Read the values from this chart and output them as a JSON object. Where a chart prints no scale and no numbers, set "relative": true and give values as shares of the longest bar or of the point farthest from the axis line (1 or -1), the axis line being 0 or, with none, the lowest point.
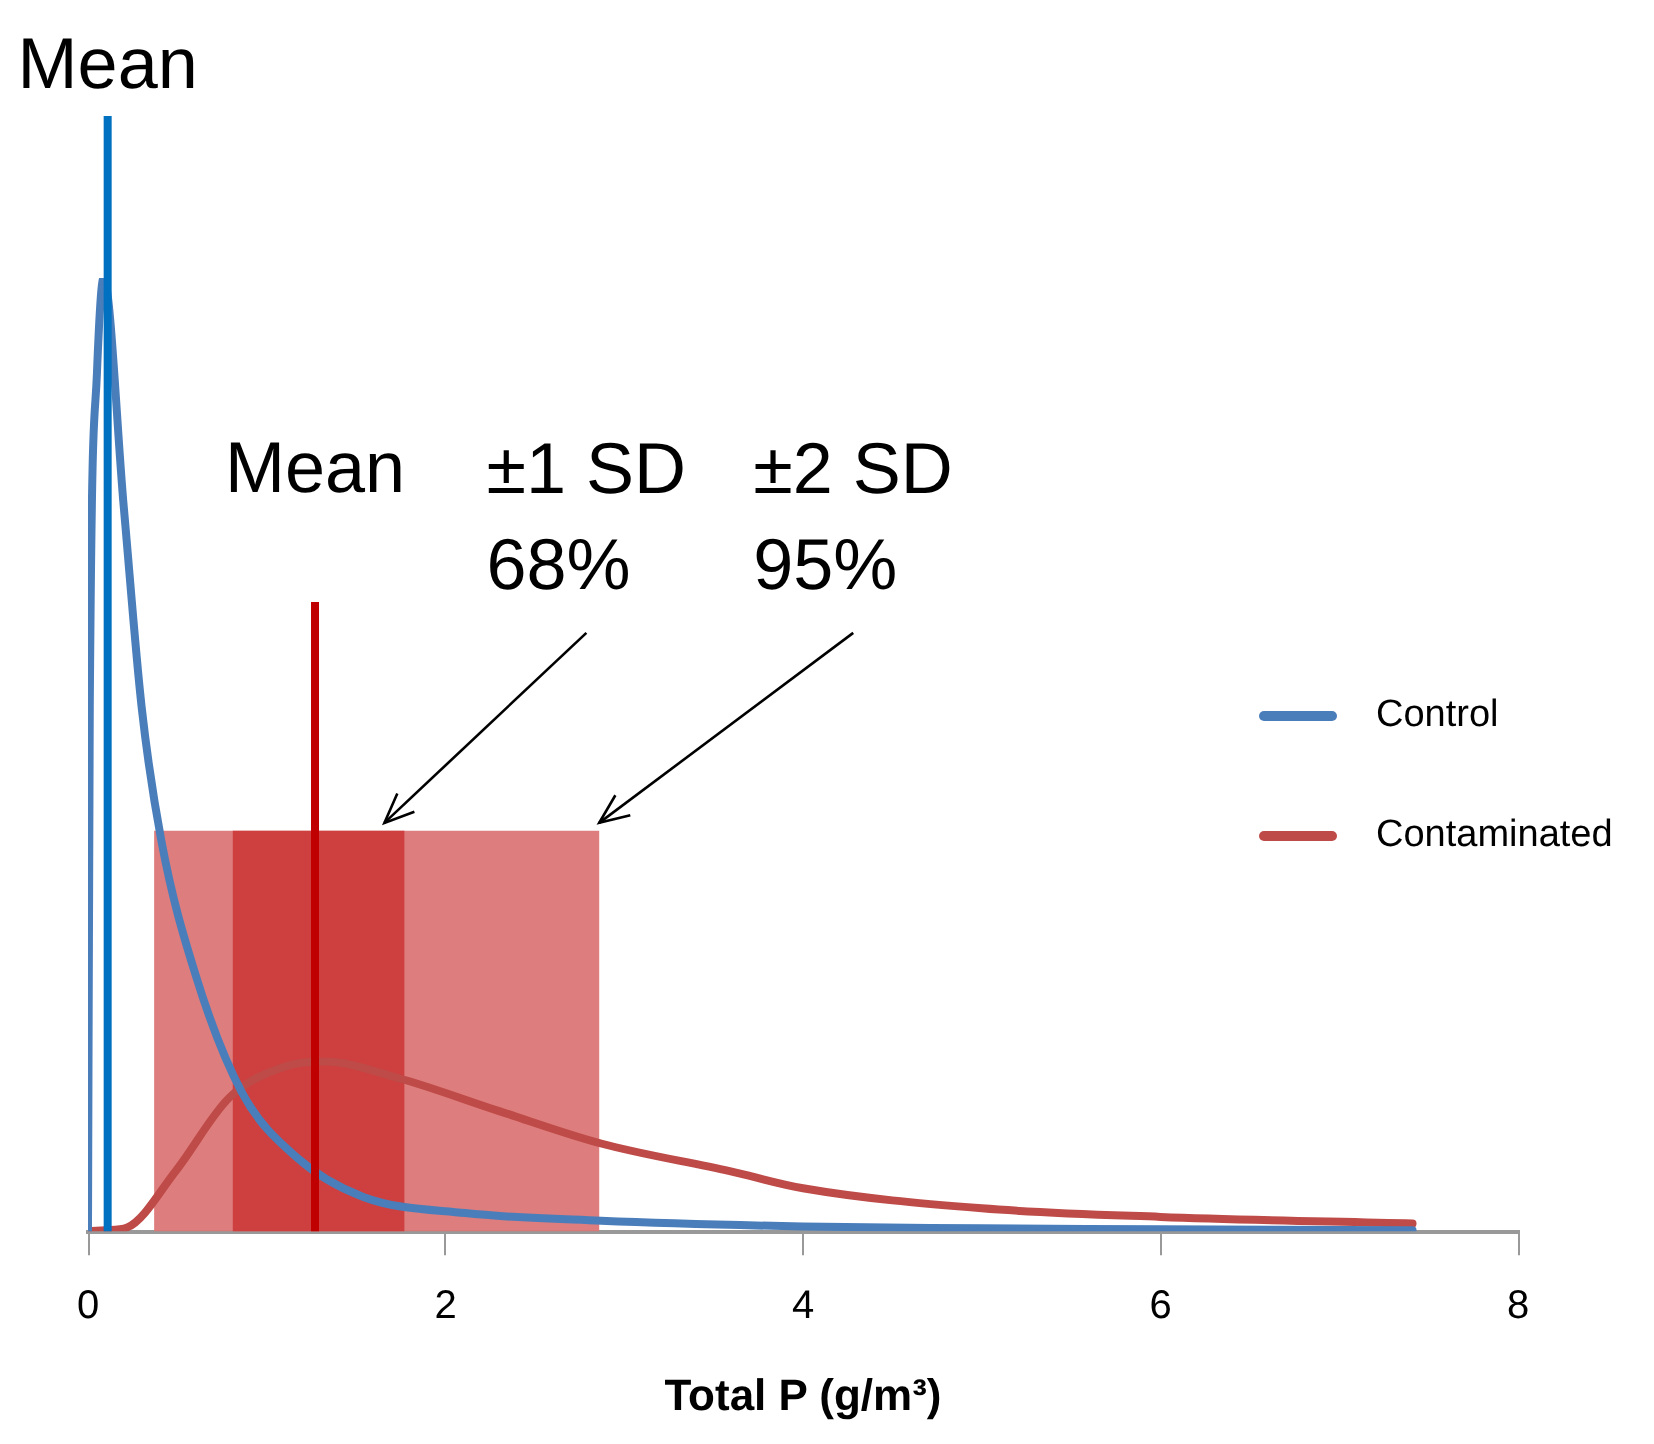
{
  "chart_data": {
    "type": "line",
    "xlabel": "Total P (g/m³)",
    "relative": true,
    "xlim": [
      0,
      8
    ],
    "xticks": [
      0,
      2,
      4,
      6,
      8
    ],
    "grid": false,
    "legend": "right",
    "marker": "none",
    "line_style": "solid",
    "series": [
      {
        "name": "Control",
        "color": "#4a7ebb",
        "x": [
          0,
          0.01,
          0.05,
          0.087,
          0.2,
          0.3,
          0.41,
          0.6,
          0.86,
          1.17,
          1.54,
          2.11,
          2.87,
          4,
          5,
          6,
          7.41
        ],
        "values": [
          0,
          0.55,
          0.9,
          1,
          0.76,
          0.55,
          0.41,
          0.27,
          0.146,
          0.077,
          0.036,
          0.019,
          0.011,
          0.005,
          0.003,
          0.002,
          0.001
        ]
      },
      {
        "name": "Contaminated",
        "color": "#be4b48",
        "x": [
          0,
          0.1,
          0.22,
          0.49,
          0.79,
          1.09,
          1.32,
          1.73,
          2.3,
          2.87,
          3.59,
          4,
          5,
          6,
          7.41
        ],
        "values": [
          0,
          0.001,
          0.004,
          0.063,
          0.14,
          0.172,
          0.178,
          0.161,
          0.126,
          0.092,
          0.063,
          0.045,
          0.024,
          0.015,
          0.008
        ]
      }
    ],
    "ref_lines": [
      {
        "axis": "x",
        "value": 0.11,
        "label": "Mean",
        "color": "#0070c0"
      },
      {
        "axis": "x",
        "value": 1.27,
        "label": "Mean",
        "color": "#c00000"
      }
    ],
    "bands": [
      {
        "axis": "x",
        "from": 0.37,
        "to": 2.86,
        "label": "±2 SD\n95%",
        "color": "#dc7676"
      },
      {
        "axis": "x",
        "from": 0.81,
        "to": 1.77,
        "label": "±1 SD\n68%",
        "color": "#cc3c3c"
      }
    ]
  }
}
